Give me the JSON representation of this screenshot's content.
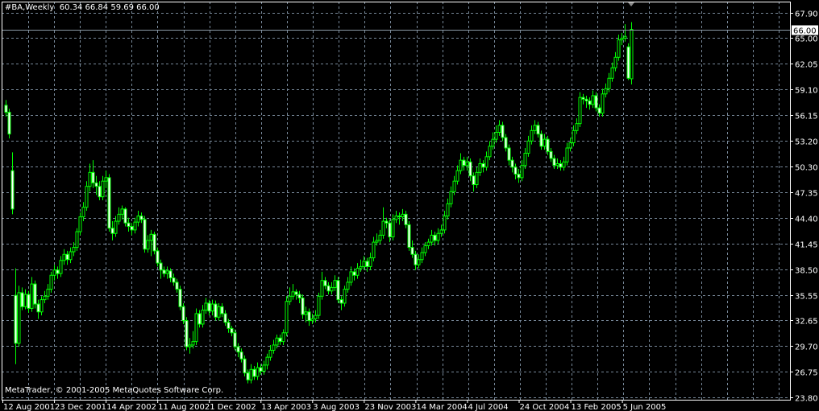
{
  "header": {
    "symbol": "#BA,Weekly",
    "ohlc_text": "60.34 66.84 59.69 66.00"
  },
  "copyright": "MetaTrader, © 2001-2005 MetaQuotes Software Corp.",
  "colors": {
    "background": "#000000",
    "candle_outline": "#00ff00",
    "bull_body": "#000000",
    "bear_body": "#ffffff",
    "grid": "#778899",
    "frame": "#ffffff",
    "text": "#ffffff"
  },
  "chart_data": {
    "type": "candlestick",
    "title": "#BA,Weekly",
    "ylim": [
      23.8,
      67.9
    ],
    "grid": true,
    "current_price": "66.00",
    "y_ticks": [
      "67.90",
      "65.00",
      "62.05",
      "59.10",
      "56.15",
      "53.20",
      "50.30",
      "47.35",
      "44.40",
      "41.45",
      "38.50",
      "35.55",
      "32.65",
      "29.70",
      "26.75",
      "23.80"
    ],
    "x_ticks": [
      "12 Aug 2001",
      "23 Dec 2001",
      "14 Apr 2002",
      "11 Aug 2002",
      "1 Dec 2002",
      "13 Apr 2003",
      "3 Aug 2003",
      "23 Nov 2003",
      "14 Mar 2004",
      "4 Jul 2004",
      "24 Oct 2004",
      "13 Feb 2005",
      "5 Jun 2005"
    ],
    "ohlc_fields": [
      "open",
      "high",
      "low",
      "close"
    ],
    "ohlc": [
      [
        57.3,
        57.9,
        56.0,
        56.5
      ],
      [
        56.5,
        56.9,
        53.5,
        54.0
      ],
      [
        49.8,
        51.9,
        44.8,
        45.4
      ],
      [
        35.5,
        38.6,
        27.6,
        30.0
      ],
      [
        30.0,
        36.6,
        29.6,
        35.8
      ],
      [
        35.8,
        36.4,
        33.8,
        34.2
      ],
      [
        34.2,
        36.2,
        33.9,
        35.6
      ],
      [
        35.6,
        36.0,
        33.5,
        34.0
      ],
      [
        34.0,
        37.6,
        33.6,
        36.8
      ],
      [
        36.8,
        37.2,
        34.0,
        34.5
      ],
      [
        34.5,
        35.0,
        32.8,
        33.6
      ],
      [
        33.6,
        35.4,
        33.2,
        35.0
      ],
      [
        35.0,
        36.0,
        34.6,
        35.4
      ],
      [
        35.4,
        36.8,
        35.0,
        36.2
      ],
      [
        36.2,
        38.2,
        35.8,
        37.8
      ],
      [
        37.8,
        39.0,
        37.2,
        38.4
      ],
      [
        38.4,
        38.8,
        37.4,
        38.0
      ],
      [
        38.0,
        40.0,
        37.6,
        39.5
      ],
      [
        39.5,
        40.8,
        39.0,
        40.2
      ],
      [
        40.2,
        40.6,
        39.0,
        39.6
      ],
      [
        39.6,
        41.0,
        39.2,
        40.5
      ],
      [
        40.5,
        41.6,
        40.0,
        41.0
      ],
      [
        41.0,
        43.2,
        40.6,
        42.8
      ],
      [
        42.8,
        45.0,
        42.4,
        44.5
      ],
      [
        44.5,
        46.2,
        44.0,
        45.6
      ],
      [
        45.6,
        48.6,
        45.2,
        48.0
      ],
      [
        48.0,
        50.6,
        47.4,
        49.6
      ],
      [
        49.6,
        51.0,
        47.8,
        48.4
      ],
      [
        48.4,
        49.2,
        47.0,
        48.0
      ],
      [
        48.0,
        48.6,
        46.4,
        46.8
      ],
      [
        46.8,
        49.2,
        46.4,
        48.6
      ],
      [
        48.6,
        49.8,
        47.8,
        49.0
      ],
      [
        49.0,
        49.4,
        42.8,
        43.2
      ],
      [
        43.2,
        44.0,
        41.8,
        42.6
      ],
      [
        42.6,
        44.6,
        42.2,
        44.0
      ],
      [
        44.0,
        45.6,
        43.6,
        44.8
      ],
      [
        44.8,
        45.8,
        44.2,
        45.4
      ],
      [
        45.4,
        45.6,
        43.4,
        43.8
      ],
      [
        43.8,
        44.4,
        42.8,
        43.4
      ],
      [
        43.4,
        43.8,
        42.4,
        43.0
      ],
      [
        43.0,
        44.4,
        42.6,
        43.9
      ],
      [
        43.9,
        45.2,
        43.4,
        44.6
      ],
      [
        44.6,
        45.0,
        43.8,
        44.2
      ],
      [
        44.2,
        44.6,
        40.4,
        40.8
      ],
      [
        40.8,
        42.4,
        40.4,
        41.8
      ],
      [
        41.8,
        43.0,
        40.0,
        42.5
      ],
      [
        42.5,
        42.8,
        40.2,
        40.6
      ],
      [
        40.6,
        41.0,
        38.8,
        39.2
      ],
      [
        39.2,
        39.6,
        37.4,
        38.4
      ],
      [
        38.4,
        38.8,
        37.6,
        38.0
      ],
      [
        38.0,
        38.8,
        37.4,
        38.3
      ],
      [
        38.3,
        38.6,
        37.0,
        37.5
      ],
      [
        37.5,
        38.0,
        36.6,
        37.0
      ],
      [
        37.0,
        37.4,
        35.8,
        36.2
      ],
      [
        36.2,
        36.6,
        33.8,
        34.2
      ],
      [
        34.2,
        34.6,
        32.2,
        32.6
      ],
      [
        32.6,
        33.0,
        29.2,
        29.6
      ],
      [
        29.6,
        30.6,
        28.8,
        29.8
      ],
      [
        29.8,
        31.4,
        29.4,
        30.2
      ],
      [
        30.2,
        34.0,
        29.8,
        33.4
      ],
      [
        33.4,
        33.8,
        31.8,
        32.2
      ],
      [
        32.2,
        34.4,
        31.8,
        33.8
      ],
      [
        33.8,
        35.2,
        33.4,
        34.6
      ],
      [
        34.6,
        35.0,
        33.2,
        33.7
      ],
      [
        33.7,
        35.0,
        33.2,
        34.5
      ],
      [
        34.5,
        34.9,
        32.6,
        33.0
      ],
      [
        33.0,
        34.6,
        32.6,
        34.2
      ],
      [
        34.2,
        34.6,
        33.0,
        33.4
      ],
      [
        33.4,
        33.8,
        32.0,
        32.4
      ],
      [
        32.4,
        32.8,
        31.2,
        31.7
      ],
      [
        31.7,
        32.0,
        30.8,
        31.2
      ],
      [
        31.2,
        31.6,
        29.2,
        29.6
      ],
      [
        29.6,
        30.0,
        28.4,
        29.0
      ],
      [
        29.0,
        29.4,
        27.8,
        28.2
      ],
      [
        28.2,
        28.6,
        26.2,
        26.6
      ],
      [
        26.6,
        27.0,
        25.4,
        25.8
      ],
      [
        25.8,
        27.6,
        25.4,
        27.0
      ],
      [
        27.0,
        27.4,
        25.8,
        26.2
      ],
      [
        26.2,
        27.8,
        25.8,
        27.2
      ],
      [
        27.2,
        27.6,
        26.4,
        26.8
      ],
      [
        26.8,
        28.0,
        26.4,
        27.5
      ],
      [
        27.5,
        28.8,
        27.0,
        28.4
      ],
      [
        28.4,
        29.8,
        28.0,
        29.2
      ],
      [
        29.2,
        30.4,
        28.8,
        29.8
      ],
      [
        29.8,
        31.0,
        29.4,
        30.6
      ],
      [
        30.6,
        31.0,
        29.8,
        30.2
      ],
      [
        30.2,
        31.6,
        29.8,
        31.2
      ],
      [
        31.2,
        35.4,
        30.8,
        34.8
      ],
      [
        34.8,
        36.4,
        34.4,
        35.4
      ],
      [
        35.4,
        36.8,
        35.0,
        35.9
      ],
      [
        35.9,
        36.2,
        35.0,
        35.6
      ],
      [
        35.6,
        36.0,
        34.6,
        35.2
      ],
      [
        35.2,
        35.6,
        32.8,
        33.3
      ],
      [
        33.3,
        34.2,
        32.4,
        33.6
      ],
      [
        33.6,
        34.0,
        32.0,
        32.6
      ],
      [
        32.6,
        33.4,
        32.2,
        32.8
      ],
      [
        32.8,
        33.8,
        32.4,
        33.2
      ],
      [
        33.2,
        35.8,
        32.8,
        35.4
      ],
      [
        35.4,
        38.2,
        35.0,
        37.2
      ],
      [
        37.2,
        37.6,
        36.2,
        36.6
      ],
      [
        36.6,
        37.0,
        35.6,
        36.0
      ],
      [
        36.0,
        37.0,
        35.6,
        36.4
      ],
      [
        36.4,
        37.8,
        36.0,
        37.2
      ],
      [
        37.2,
        37.6,
        34.6,
        35.0
      ],
      [
        35.0,
        35.4,
        33.8,
        34.6
      ],
      [
        34.6,
        36.6,
        34.2,
        36.2
      ],
      [
        36.2,
        37.6,
        35.8,
        37.0
      ],
      [
        37.0,
        38.8,
        36.6,
        38.2
      ],
      [
        38.2,
        38.6,
        37.2,
        37.8
      ],
      [
        37.8,
        39.2,
        37.4,
        38.6
      ],
      [
        38.6,
        39.6,
        38.2,
        38.8
      ],
      [
        38.8,
        40.0,
        38.4,
        39.4
      ],
      [
        39.4,
        39.8,
        38.2,
        38.8
      ],
      [
        38.8,
        40.4,
        38.4,
        39.8
      ],
      [
        39.8,
        42.2,
        39.4,
        41.6
      ],
      [
        41.6,
        42.6,
        41.2,
        41.8
      ],
      [
        41.8,
        43.0,
        41.4,
        42.4
      ],
      [
        42.4,
        45.6,
        42.0,
        44.0
      ],
      [
        44.0,
        44.4,
        43.2,
        43.8
      ],
      [
        43.8,
        44.2,
        41.6,
        42.2
      ],
      [
        42.2,
        44.8,
        41.8,
        44.2
      ],
      [
        44.2,
        45.2,
        43.8,
        44.6
      ],
      [
        44.6,
        45.0,
        43.6,
        44.5
      ],
      [
        44.5,
        45.4,
        44.0,
        44.8
      ],
      [
        44.8,
        45.2,
        43.2,
        43.6
      ],
      [
        43.6,
        44.0,
        40.6,
        41.0
      ],
      [
        41.0,
        41.8,
        39.8,
        40.2
      ],
      [
        40.2,
        40.6,
        38.4,
        39.0
      ],
      [
        39.0,
        40.2,
        38.6,
        39.6
      ],
      [
        39.6,
        41.0,
        39.2,
        40.4
      ],
      [
        40.4,
        41.6,
        40.0,
        41.2
      ],
      [
        41.2,
        42.0,
        40.8,
        41.6
      ],
      [
        41.6,
        43.0,
        41.2,
        42.4
      ],
      [
        42.4,
        42.8,
        41.2,
        41.8
      ],
      [
        41.8,
        43.2,
        41.4,
        42.6
      ],
      [
        42.6,
        43.6,
        42.2,
        43.0
      ],
      [
        43.0,
        45.2,
        42.6,
        44.6
      ],
      [
        44.6,
        46.6,
        44.2,
        46.0
      ],
      [
        46.0,
        48.0,
        45.6,
        47.4
      ],
      [
        47.4,
        49.2,
        47.0,
        48.6
      ],
      [
        48.6,
        50.4,
        48.2,
        49.8
      ],
      [
        49.8,
        51.8,
        49.4,
        51.0
      ],
      [
        51.0,
        51.4,
        49.8,
        50.4
      ],
      [
        50.4,
        51.4,
        49.8,
        50.8
      ],
      [
        50.8,
        51.2,
        48.6,
        49.2
      ],
      [
        49.2,
        49.6,
        47.4,
        48.2
      ],
      [
        48.2,
        50.2,
        47.8,
        49.6
      ],
      [
        49.6,
        51.2,
        49.2,
        50.6
      ],
      [
        50.6,
        51.0,
        49.6,
        50.2
      ],
      [
        50.2,
        52.0,
        49.8,
        51.4
      ],
      [
        51.4,
        53.2,
        51.0,
        52.6
      ],
      [
        52.6,
        54.2,
        52.2,
        53.4
      ],
      [
        53.4,
        55.0,
        53.0,
        54.2
      ],
      [
        54.2,
        55.6,
        53.8,
        55.0
      ],
      [
        55.0,
        55.4,
        53.2,
        53.6
      ],
      [
        53.6,
        54.0,
        52.0,
        52.4
      ],
      [
        52.4,
        52.8,
        50.4,
        51.0
      ],
      [
        51.0,
        51.4,
        49.6,
        50.2
      ],
      [
        50.2,
        50.6,
        48.8,
        49.4
      ],
      [
        49.4,
        50.0,
        48.4,
        49.0
      ],
      [
        49.0,
        51.0,
        48.6,
        50.4
      ],
      [
        50.4,
        52.4,
        50.0,
        51.8
      ],
      [
        51.8,
        53.8,
        51.4,
        53.2
      ],
      [
        53.2,
        55.0,
        52.8,
        54.4
      ],
      [
        54.4,
        55.6,
        54.0,
        55.0
      ],
      [
        55.0,
        55.4,
        53.6,
        54.0
      ],
      [
        54.0,
        54.4,
        52.2,
        52.6
      ],
      [
        52.6,
        54.0,
        52.2,
        53.4
      ],
      [
        53.4,
        53.8,
        51.6,
        52.0
      ],
      [
        52.0,
        52.4,
        50.8,
        51.2
      ],
      [
        51.2,
        51.6,
        50.0,
        50.4
      ],
      [
        50.4,
        51.2,
        50.0,
        50.6
      ],
      [
        50.6,
        51.0,
        49.8,
        50.2
      ],
      [
        50.2,
        51.4,
        49.8,
        50.8
      ],
      [
        50.8,
        53.0,
        50.4,
        52.4
      ],
      [
        52.4,
        53.6,
        52.0,
        53.0
      ],
      [
        53.0,
        55.0,
        52.6,
        54.4
      ],
      [
        54.4,
        55.8,
        54.0,
        55.2
      ],
      [
        55.2,
        58.8,
        54.8,
        58.2
      ],
      [
        58.2,
        58.6,
        57.4,
        58.0
      ],
      [
        58.0,
        58.4,
        57.0,
        57.8
      ],
      [
        57.8,
        58.2,
        56.8,
        57.4
      ],
      [
        57.4,
        59.0,
        57.0,
        58.4
      ],
      [
        58.4,
        58.8,
        56.6,
        57.0
      ],
      [
        57.0,
        57.4,
        56.0,
        56.4
      ],
      [
        56.4,
        59.2,
        56.0,
        58.6
      ],
      [
        58.6,
        59.8,
        58.2,
        59.2
      ],
      [
        59.2,
        61.0,
        58.8,
        60.4
      ],
      [
        60.4,
        62.2,
        60.0,
        61.6
      ],
      [
        61.6,
        63.4,
        61.2,
        62.8
      ],
      [
        62.8,
        65.4,
        62.4,
        64.8
      ],
      [
        64.8,
        65.6,
        64.2,
        65.0
      ],
      [
        65.0,
        66.6,
        64.6,
        65.2
      ],
      [
        64.0,
        64.4,
        60.2,
        60.4
      ],
      [
        60.34,
        66.84,
        59.69,
        66.0
      ]
    ]
  }
}
